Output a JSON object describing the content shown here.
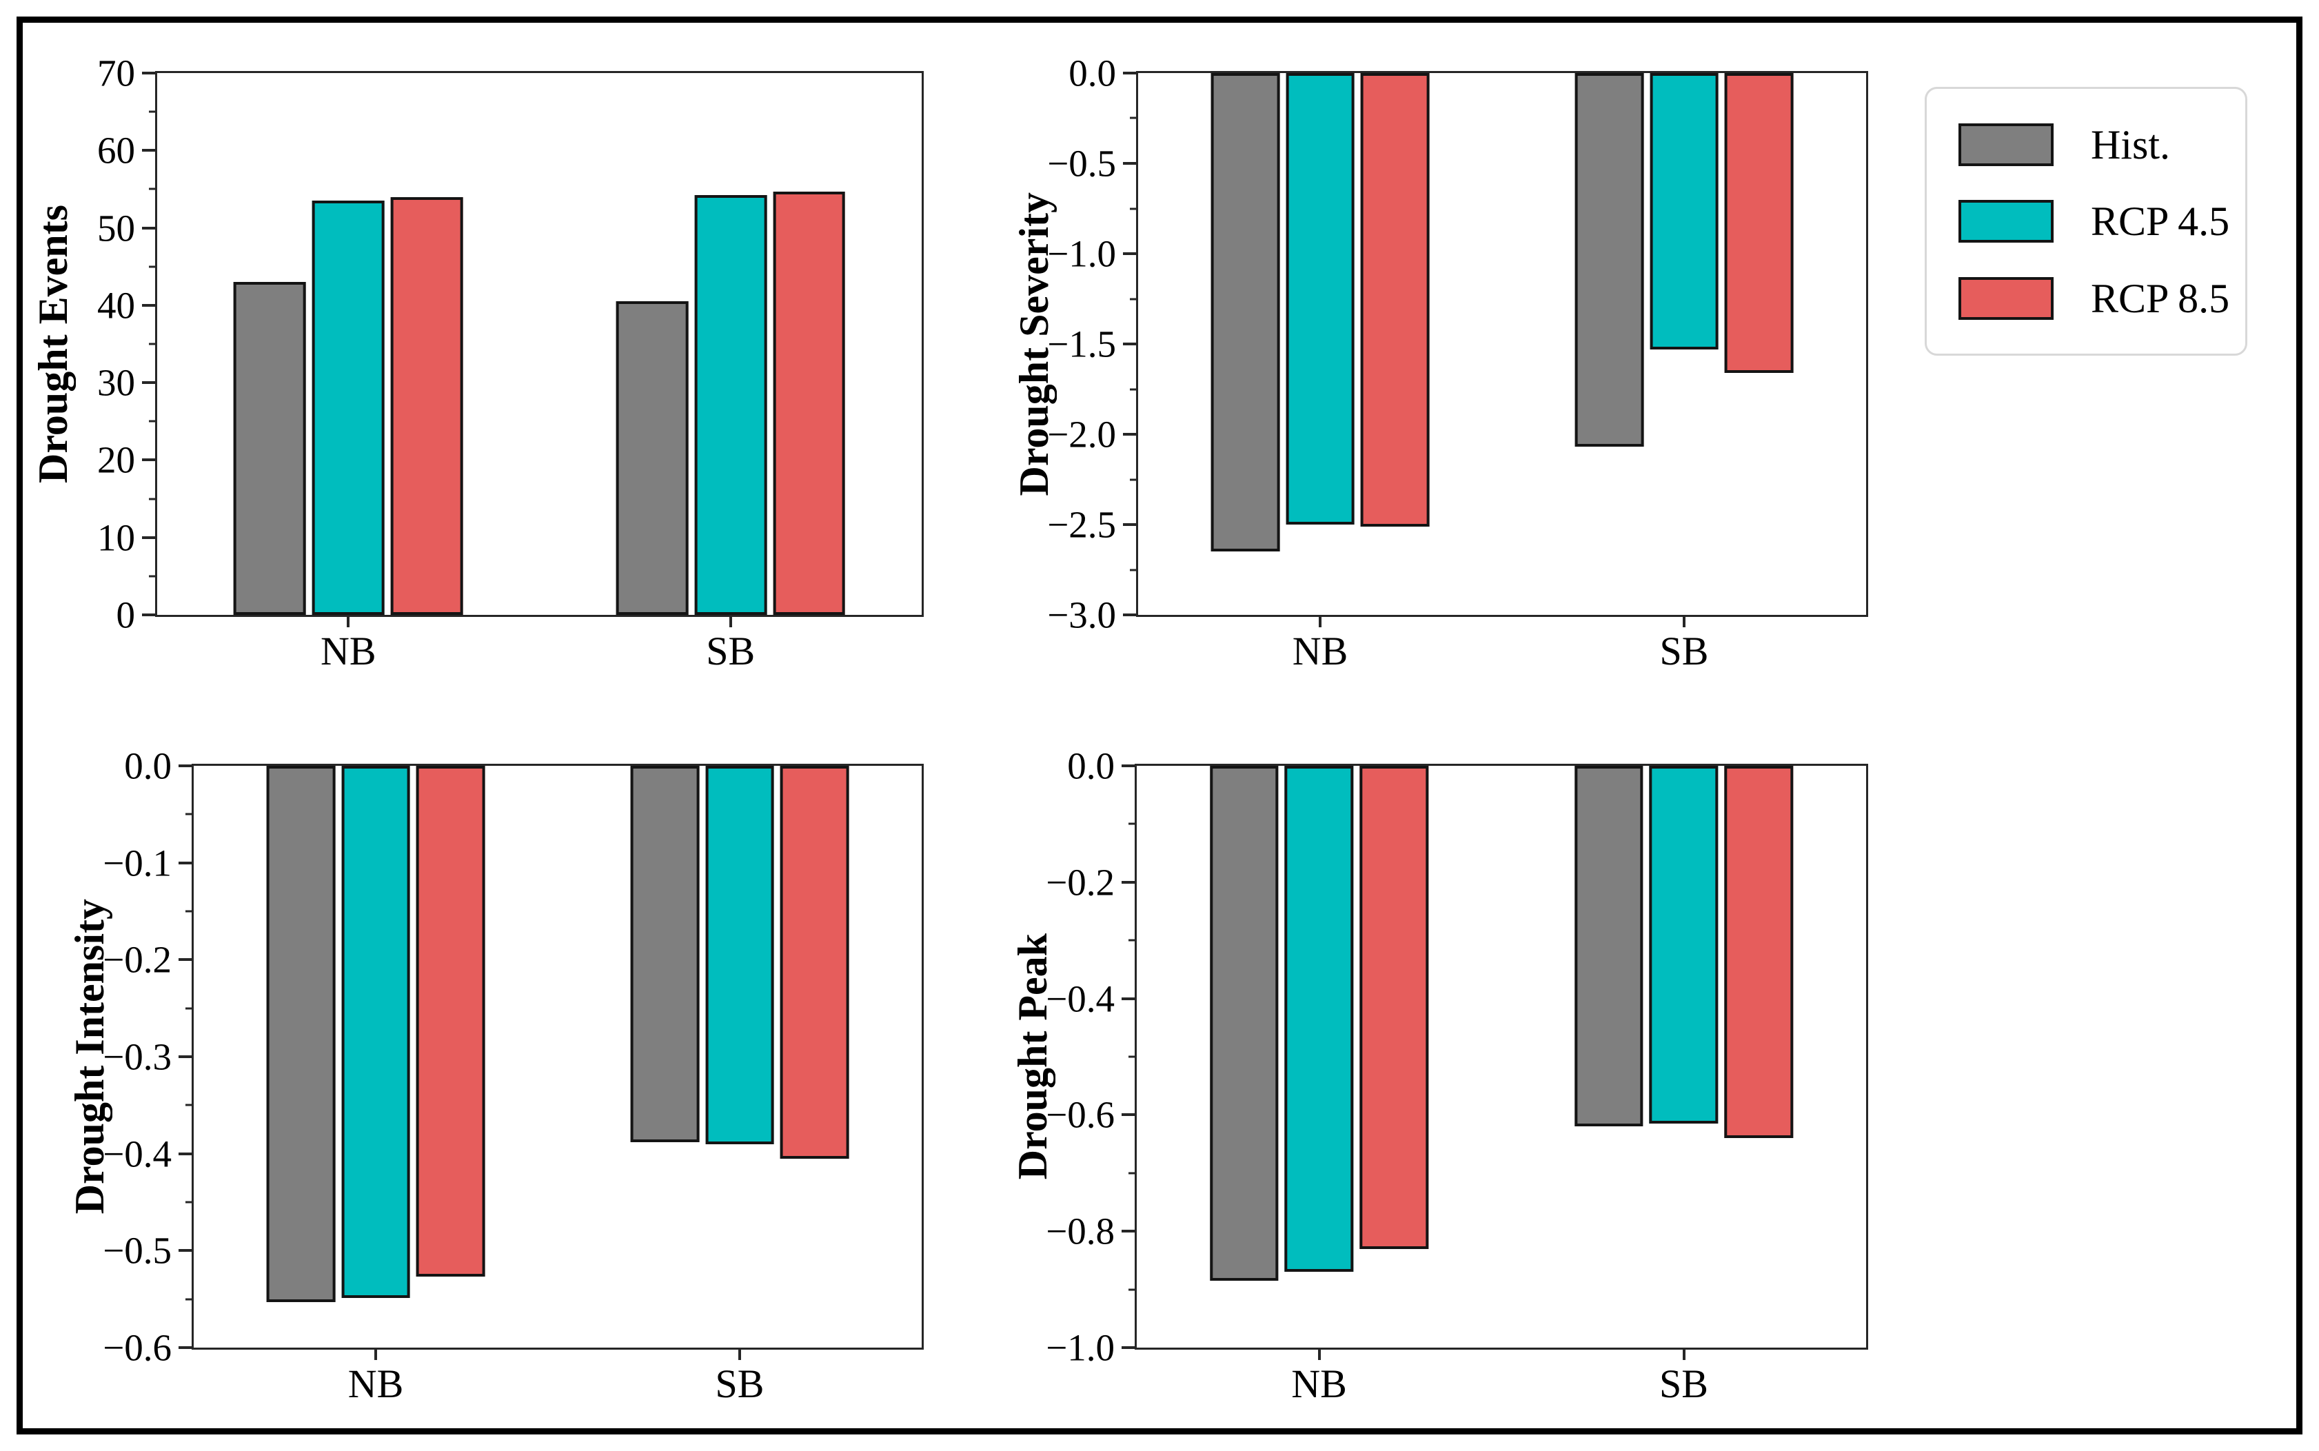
{
  "figure": {
    "background": "#ffffff",
    "border_color": "#000000",
    "axis_color": "#262626",
    "bar_edge_color": "#141414"
  },
  "legend": {
    "items": [
      {
        "label": "Hist.",
        "color": "#7f7f7f"
      },
      {
        "label": "RCP 4.5",
        "color": "#00bdbe"
      },
      {
        "label": "RCP 8.5",
        "color": "#e65d5c"
      }
    ]
  },
  "chart_data": [
    {
      "type": "bar",
      "title": "",
      "ylabel": "Drought Events",
      "xlabel": "",
      "categories": [
        "NB",
        "SB"
      ],
      "ylim": [
        0,
        70
      ],
      "grid": false,
      "legend_position": "outside-top-right",
      "yticks": [
        {
          "v": 0,
          "label": "0"
        },
        {
          "v": 10,
          "label": "10"
        },
        {
          "v": 20,
          "label": "20"
        },
        {
          "v": 30,
          "label": "30"
        },
        {
          "v": 40,
          "label": "40"
        },
        {
          "v": 50,
          "label": "50"
        },
        {
          "v": 60,
          "label": "60"
        },
        {
          "v": 70,
          "label": "70"
        }
      ],
      "series": [
        {
          "name": "Hist.",
          "values": [
            43.0,
            40.5
          ]
        },
        {
          "name": "RCP 4.5",
          "values": [
            53.5,
            54.2
          ]
        },
        {
          "name": "RCP 8.5",
          "values": [
            54.0,
            54.7
          ]
        }
      ]
    },
    {
      "type": "bar",
      "title": "",
      "ylabel": "Drought Severity",
      "xlabel": "",
      "categories": [
        "NB",
        "SB"
      ],
      "ylim": [
        -3.0,
        0
      ],
      "grid": false,
      "yticks": [
        {
          "v": 0,
          "label": "0.0"
        },
        {
          "v": -0.5,
          "label": "−0.5"
        },
        {
          "v": -1.0,
          "label": "−1.0"
        },
        {
          "v": -1.5,
          "label": "−1.5"
        },
        {
          "v": -2.0,
          "label": "−2.0"
        },
        {
          "v": -2.5,
          "label": "−2.5"
        },
        {
          "v": -3.0,
          "label": "−3.0"
        }
      ],
      "series": [
        {
          "name": "Hist.",
          "values": [
            -2.65,
            -2.07
          ]
        },
        {
          "name": "RCP 4.5",
          "values": [
            -2.5,
            -1.53
          ]
        },
        {
          "name": "RCP 8.5",
          "values": [
            -2.51,
            -1.66
          ]
        }
      ]
    },
    {
      "type": "bar",
      "title": "",
      "ylabel": "Drought Intensity",
      "xlabel": "",
      "categories": [
        "NB",
        "SB"
      ],
      "ylim": [
        -0.6,
        0
      ],
      "grid": false,
      "yticks": [
        {
          "v": 0,
          "label": "0.0"
        },
        {
          "v": -0.1,
          "label": "−0.1"
        },
        {
          "v": -0.2,
          "label": "−0.2"
        },
        {
          "v": -0.3,
          "label": "−0.3"
        },
        {
          "v": -0.4,
          "label": "−0.4"
        },
        {
          "v": -0.5,
          "label": "−0.5"
        },
        {
          "v": -0.6,
          "label": "−0.6"
        }
      ],
      "series": [
        {
          "name": "Hist.",
          "values": [
            -0.553,
            -0.388
          ]
        },
        {
          "name": "RCP 4.5",
          "values": [
            -0.549,
            -0.39
          ]
        },
        {
          "name": "RCP 8.5",
          "values": [
            -0.527,
            -0.405
          ]
        }
      ]
    },
    {
      "type": "bar",
      "title": "",
      "ylabel": "Drought Peak",
      "xlabel": "",
      "categories": [
        "NB",
        "SB"
      ],
      "ylim": [
        -1.0,
        0
      ],
      "grid": false,
      "yticks": [
        {
          "v": 0,
          "label": "0.0"
        },
        {
          "v": -0.2,
          "label": "−0.2"
        },
        {
          "v": -0.4,
          "label": "−0.4"
        },
        {
          "v": -0.6,
          "label": "−0.6"
        },
        {
          "v": -0.8,
          "label": "−0.8"
        },
        {
          "v": -1.0,
          "label": "−1.0"
        }
      ],
      "series": [
        {
          "name": "Hist.",
          "values": [
            -0.885,
            -0.62
          ]
        },
        {
          "name": "RCP 4.5",
          "values": [
            -0.87,
            -0.615
          ]
        },
        {
          "name": "RCP 8.5",
          "values": [
            -0.83,
            -0.64
          ]
        }
      ]
    }
  ]
}
